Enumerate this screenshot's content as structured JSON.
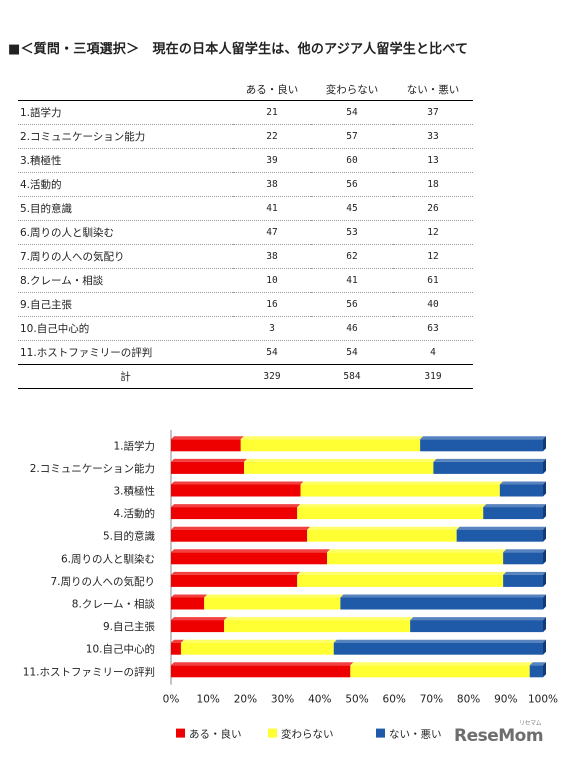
{
  "title": "■＜質問・三項選択＞　現在の日本人留学生は、他のアジア人留学生と比べて",
  "table": {
    "headers": [
      "",
      "ある・良い",
      "変わらない",
      "ない・悪い"
    ],
    "rows": [
      {
        "label": "1.語学力",
        "v1": "21",
        "v2": "54",
        "v3": "37"
      },
      {
        "label": "2.コミュニケーション能力",
        "v1": "22",
        "v2": "57",
        "v3": "33"
      },
      {
        "label": "3.積極性",
        "v1": "39",
        "v2": "60",
        "v3": "13"
      },
      {
        "label": "4.活動的",
        "v1": "38",
        "v2": "56",
        "v3": "18"
      },
      {
        "label": "5.目的意識",
        "v1": "41",
        "v2": "45",
        "v3": "26"
      },
      {
        "label": "6.周りの人と馴染む",
        "v1": "47",
        "v2": "53",
        "v3": "12"
      },
      {
        "label": "7.周りの人への気配り",
        "v1": "38",
        "v2": "62",
        "v3": "12"
      },
      {
        "label": "8.クレーム・相談",
        "v1": "10",
        "v2": "41",
        "v3": "61"
      },
      {
        "label": "9.自己主張",
        "v1": "16",
        "v2": "56",
        "v3": "40"
      },
      {
        "label": "10.自己中心的",
        "v1": "3",
        "v2": "46",
        "v3": "63"
      },
      {
        "label": "11.ホストファミリーの評判",
        "v1": "54",
        "v2": "54",
        "v3": "4"
      }
    ],
    "total": {
      "label": "計",
      "v1": "329",
      "v2": "584",
      "v3": "319"
    }
  },
  "chart_data": {
    "type": "bar",
    "orientation": "horizontal",
    "stacked": "percent",
    "categories": [
      "1.語学力",
      "2.コミュニケーション能力",
      "3.積極性",
      "4.活動的",
      "5.目的意識",
      "6.周りの人と馴染む",
      "7.周りの人への気配り",
      "8.クレーム・相談",
      "9.自己主張",
      "10.自己中心的",
      "11.ホストファミリーの評判"
    ],
    "series": [
      {
        "name": "ある・良い",
        "color": "#ee0000",
        "values": [
          21,
          22,
          39,
          38,
          41,
          47,
          38,
          10,
          16,
          3,
          54
        ]
      },
      {
        "name": "変わらない",
        "color": "#ffff33",
        "values": [
          54,
          57,
          60,
          56,
          45,
          53,
          62,
          41,
          56,
          46,
          54
        ]
      },
      {
        "name": "ない・悪い",
        "color": "#1f5aa8",
        "values": [
          37,
          33,
          13,
          18,
          26,
          12,
          12,
          61,
          40,
          63,
          4
        ]
      }
    ],
    "xticks": [
      "0%",
      "10%",
      "20%",
      "30%",
      "40%",
      "50%",
      "60%",
      "70%",
      "80%",
      "90%",
      "100%"
    ],
    "xlim": [
      0,
      100
    ],
    "legend": "bottom",
    "grid": false
  },
  "logo": {
    "text": "ReseMom",
    "sub": "リセマム"
  }
}
